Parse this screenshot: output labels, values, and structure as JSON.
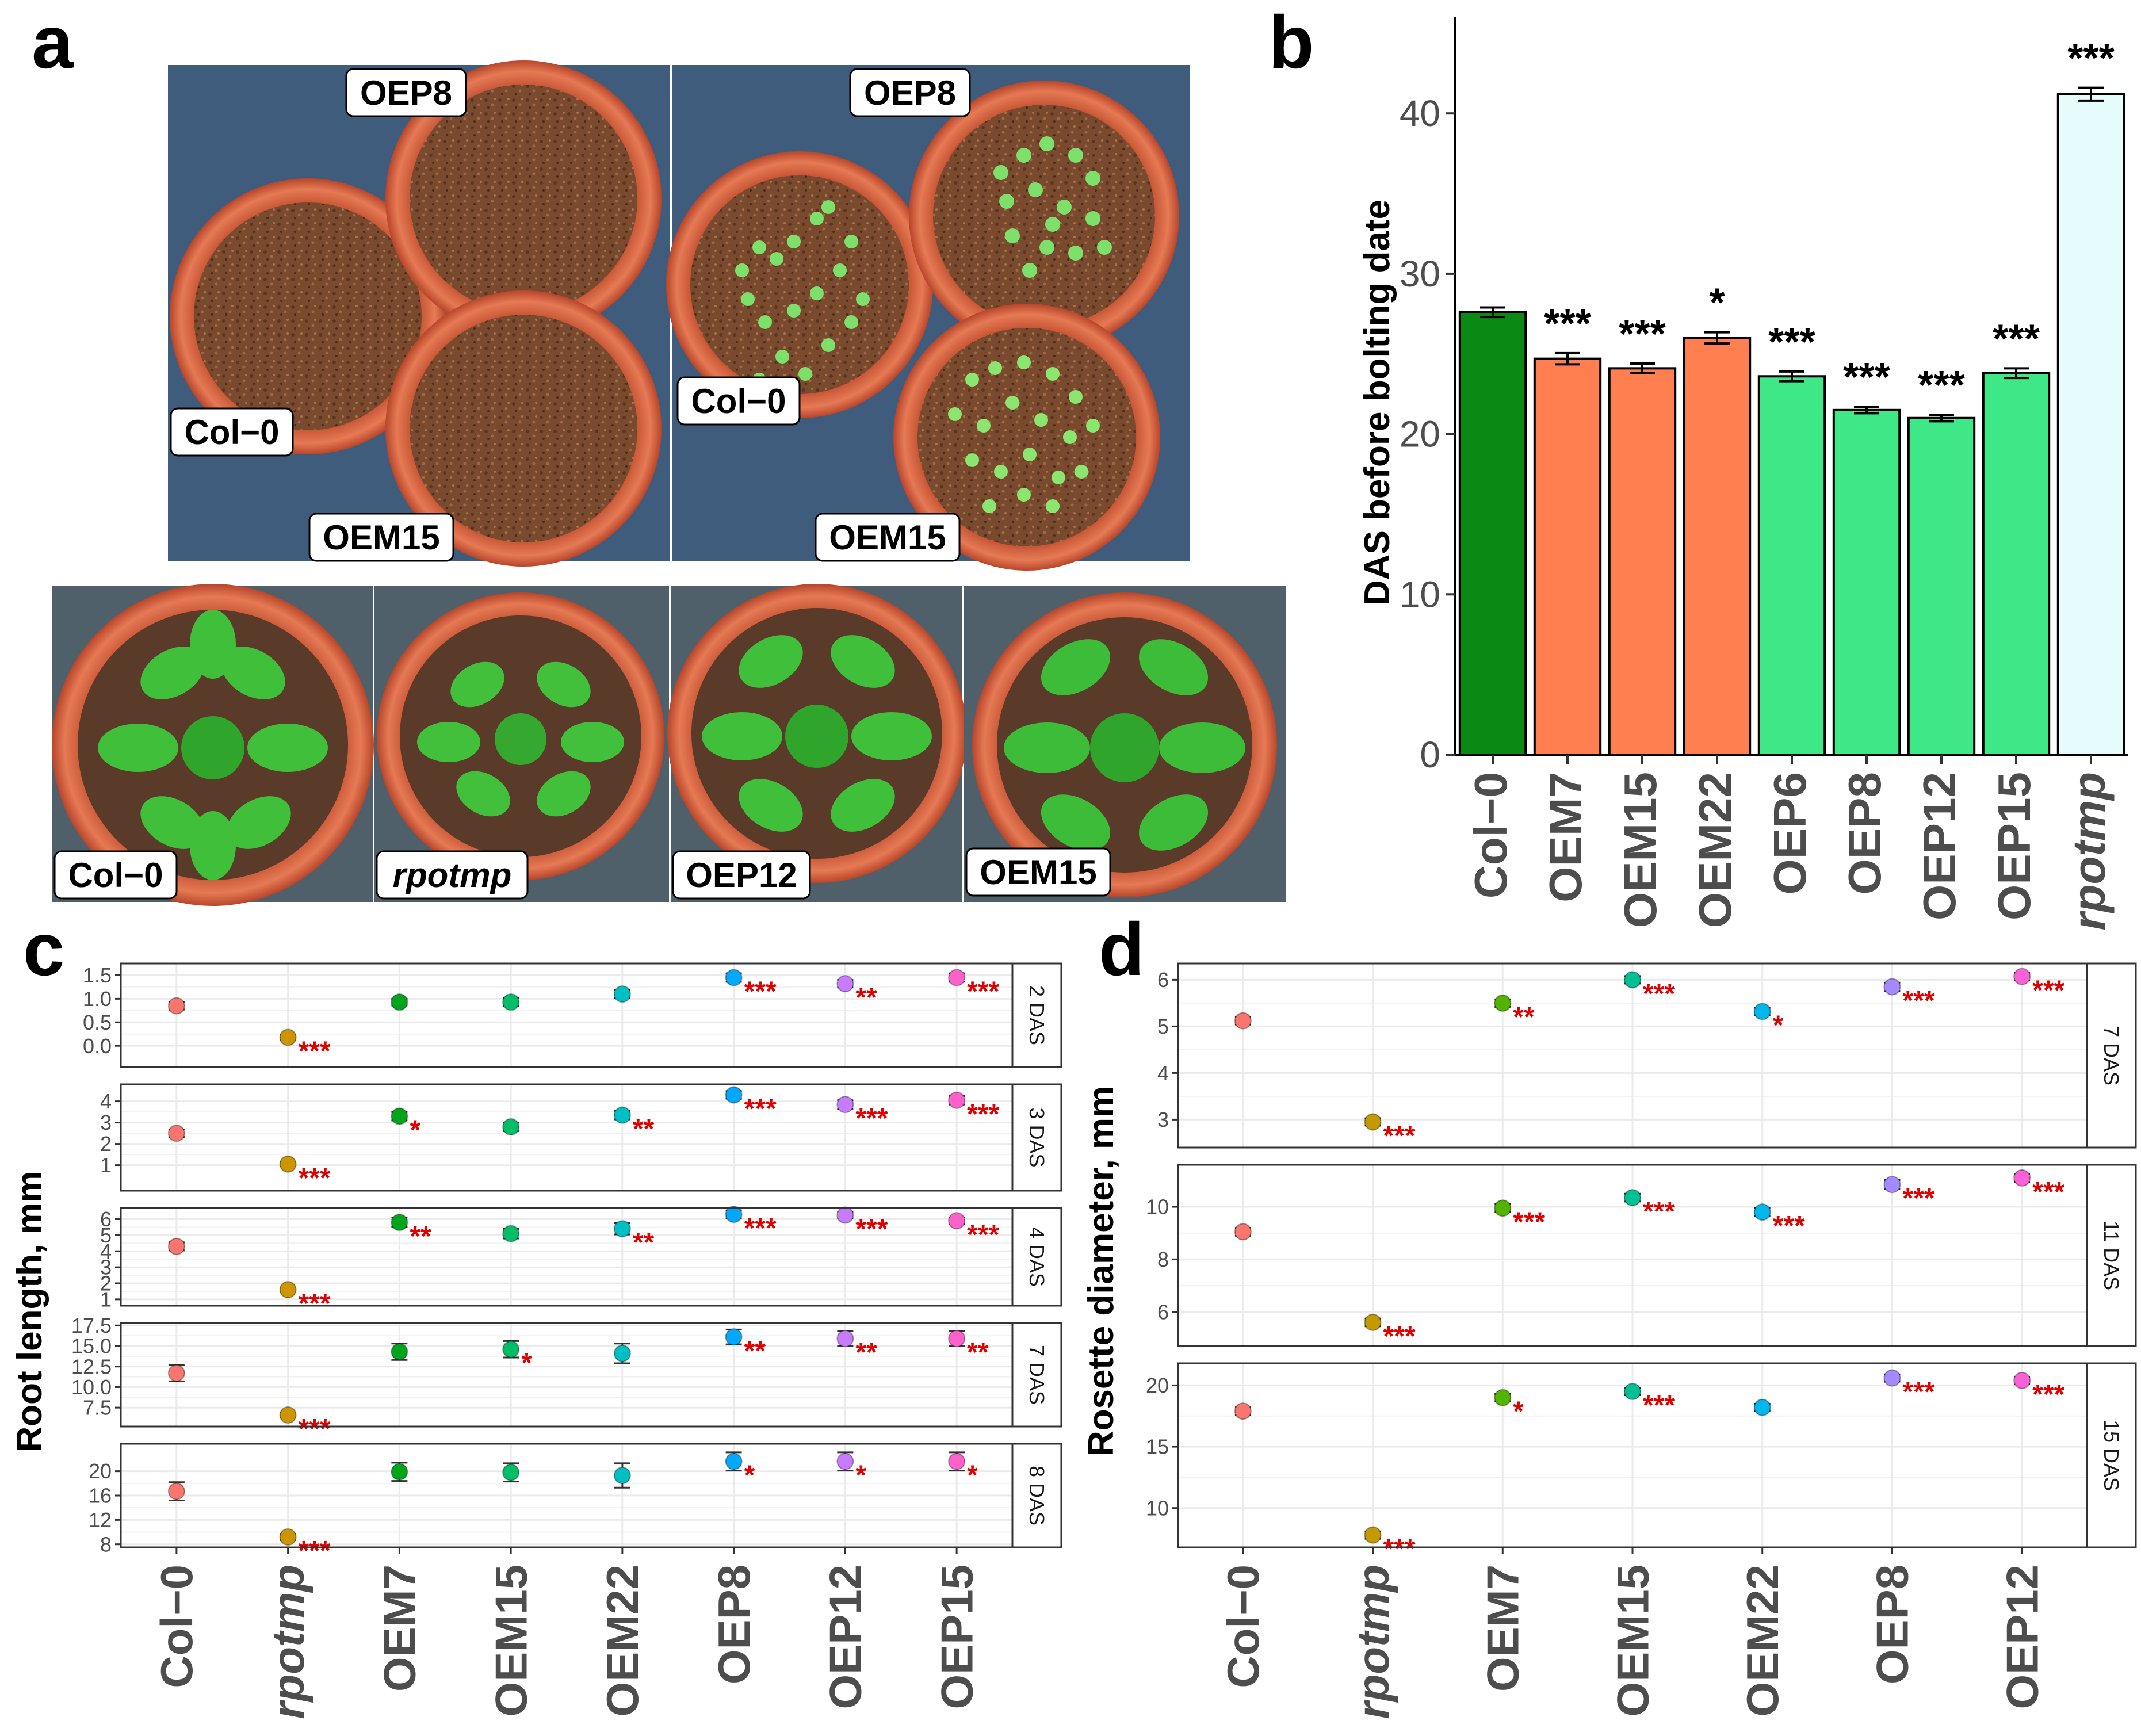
{
  "panels": {
    "a": {
      "label": "a",
      "top_photos": [
        {
          "name": "pots-day-early",
          "labels": [
            "OEP8",
            "Col−0",
            "OEM15"
          ]
        },
        {
          "name": "pots-day-late",
          "labels": [
            "OEP8",
            "Col−0",
            "OEM15"
          ]
        }
      ],
      "bottom_photos": [
        {
          "name": "rosette-col0",
          "label": "Col−0",
          "italic": false
        },
        {
          "name": "rosette-rpotmp",
          "label": "rpotmp",
          "italic": true
        },
        {
          "name": "rosette-oep12",
          "label": "OEP12",
          "italic": false
        },
        {
          "name": "rosette-oem15",
          "label": "OEM15",
          "italic": false
        }
      ]
    },
    "b": {
      "label": "b"
    },
    "c": {
      "label": "c"
    },
    "d": {
      "label": "d"
    }
  },
  "colors": {
    "col0_dark_green": "#0a8a14",
    "oem_orange": "#ff7f50",
    "oep_green": "#3ee887",
    "rpotmp_cyan": "#e6fcfc",
    "sig_red": "#e00000",
    "grid": "#ebebeb",
    "pot": "#d8603e",
    "soil": "#7a4a2e",
    "backdrop": "#3f5c7c"
  },
  "chart_data": [
    {
      "id": "b",
      "type": "bar",
      "title": "",
      "ylabel": "DAS before bolting date",
      "xlabel": "",
      "ylim": [
        0,
        46
      ],
      "yticks": [
        0,
        10,
        20,
        30,
        40
      ],
      "categories": [
        "Col−0",
        "OEM7",
        "OEM15",
        "OEM22",
        "OEP6",
        "OEP8",
        "OEP12",
        "OEP15",
        "rpotmp"
      ],
      "italic_categories": [
        "rpotmp"
      ],
      "values": [
        27.6,
        24.7,
        24.1,
        26.0,
        23.6,
        21.5,
        21.0,
        23.8,
        41.2
      ],
      "errors": [
        0.3,
        0.35,
        0.3,
        0.35,
        0.3,
        0.2,
        0.2,
        0.3,
        0.4
      ],
      "bar_colors": [
        "#0a8a14",
        "#ff7f50",
        "#ff7f50",
        "#ff7f50",
        "#3ee887",
        "#3ee887",
        "#3ee887",
        "#3ee887",
        "#e6fcfc"
      ],
      "significance": [
        "",
        "***",
        "***",
        "*",
        "***",
        "***",
        "***",
        "***",
        "***"
      ]
    },
    {
      "id": "c",
      "type": "scatter",
      "ylabel": "Root length, mm",
      "categories": [
        "Col−0",
        "rpotmp",
        "OEM7",
        "OEM15",
        "OEM22",
        "OEP8",
        "OEP12",
        "OEP15"
      ],
      "italic_categories": [
        "rpotmp"
      ],
      "point_colors": [
        "#f8766d",
        "#cd9600",
        "#00a51c",
        "#00be67",
        "#00bfc4",
        "#00a9ff",
        "#c77cff",
        "#ff61cc"
      ],
      "facets": [
        {
          "strip": "2 DAS",
          "ylim": [
            -0.45,
            1.75
          ],
          "yticks": [
            0.0,
            0.5,
            1.0,
            1.5
          ],
          "yticklabels": [
            "0.0",
            "0.5",
            "1.0",
            "1.5"
          ],
          "means": [
            0.85,
            0.18,
            0.93,
            0.93,
            1.1,
            1.45,
            1.32,
            1.45
          ],
          "errors": [
            0.08,
            0.05,
            0.07,
            0.08,
            0.09,
            0.09,
            0.08,
            0.09
          ],
          "significance": [
            "",
            "***",
            "",
            "",
            "",
            "***",
            "**",
            "***"
          ]
        },
        {
          "strip": "3 DAS",
          "ylim": [
            -0.2,
            4.8
          ],
          "yticks": [
            1,
            2,
            3,
            4
          ],
          "yticklabels": [
            "1",
            "2",
            "3",
            "4"
          ],
          "means": [
            2.5,
            1.05,
            3.3,
            2.8,
            3.35,
            4.3,
            3.85,
            4.05
          ],
          "errors": [
            0.18,
            0.1,
            0.2,
            0.2,
            0.2,
            0.18,
            0.2,
            0.2
          ],
          "significance": [
            "",
            "***",
            "*",
            "",
            "**",
            "***",
            "***",
            "***"
          ]
        },
        {
          "strip": "4 DAS",
          "ylim": [
            0.6,
            6.7
          ],
          "yticks": [
            1,
            2,
            3,
            4,
            5,
            6
          ],
          "yticklabels": [
            "1",
            "2",
            "3",
            "4",
            "5",
            "6"
          ],
          "means": [
            4.3,
            1.6,
            5.8,
            5.1,
            5.4,
            6.3,
            6.25,
            5.9
          ],
          "errors": [
            0.25,
            0.1,
            0.3,
            0.3,
            0.35,
            0.25,
            0.2,
            0.2
          ],
          "significance": [
            "",
            "***",
            "**",
            "",
            "**",
            "***",
            "***",
            "***"
          ]
        },
        {
          "strip": "7 DAS",
          "ylim": [
            5.2,
            17.8
          ],
          "yticks": [
            7.5,
            10.0,
            12.5,
            15.0,
            17.5
          ],
          "yticklabels": [
            "7.5",
            "10.0",
            "12.5",
            "15.0",
            "17.5"
          ],
          "means": [
            11.7,
            6.6,
            14.3,
            14.6,
            14.1,
            16.1,
            15.9,
            15.9
          ],
          "errors": [
            1.0,
            0.3,
            1.0,
            1.0,
            1.2,
            0.9,
            0.9,
            0.9
          ],
          "significance": [
            "",
            "***",
            "",
            "*",
            "",
            "**",
            "**",
            "**"
          ]
        },
        {
          "strip": "8 DAS",
          "ylim": [
            7.5,
            24.5
          ],
          "yticks": [
            8,
            12,
            16,
            20
          ],
          "yticklabels": [
            "8",
            "12",
            "16",
            "20"
          ],
          "means": [
            16.7,
            9.2,
            19.9,
            19.8,
            19.3,
            21.6,
            21.6,
            21.6
          ],
          "errors": [
            1.5,
            0.5,
            1.5,
            1.5,
            2.0,
            1.5,
            1.5,
            1.5
          ],
          "significance": [
            "",
            "***",
            "",
            "",
            "",
            "*",
            "*",
            "*"
          ]
        }
      ]
    },
    {
      "id": "d",
      "type": "scatter",
      "ylabel": "Rosette diameter, mm",
      "categories": [
        "Col−0",
        "rpotmp",
        "OEM7",
        "OEM15",
        "OEM22",
        "OEP8",
        "OEP12"
      ],
      "italic_categories": [
        "rpotmp"
      ],
      "point_colors": [
        "#f8766d",
        "#c49a00",
        "#53b400",
        "#00c094",
        "#00b6eb",
        "#a58aff",
        "#fb61d7"
      ],
      "facets": [
        {
          "strip": "7 DAS",
          "ylim": [
            2.4,
            6.35
          ],
          "yticks": [
            3,
            4,
            5,
            6
          ],
          "yticklabels": [
            "3",
            "4",
            "5",
            "6"
          ],
          "means": [
            5.12,
            2.95,
            5.5,
            6.0,
            5.32,
            5.85,
            6.07
          ],
          "errors": [
            0.08,
            0.08,
            0.08,
            0.08,
            0.08,
            0.09,
            0.08
          ],
          "significance": [
            "",
            "***",
            "**",
            "***",
            "*",
            "***",
            "***"
          ]
        },
        {
          "strip": "11 DAS",
          "ylim": [
            4.7,
            11.6
          ],
          "yticks": [
            6,
            8,
            10
          ],
          "yticklabels": [
            "6",
            "8",
            "10"
          ],
          "means": [
            9.05,
            5.6,
            9.95,
            10.35,
            9.8,
            10.85,
            11.1
          ],
          "errors": [
            0.15,
            0.15,
            0.15,
            0.15,
            0.15,
            0.17,
            0.16
          ],
          "significance": [
            "",
            "***",
            "***",
            "***",
            "***",
            "***",
            "***"
          ]
        },
        {
          "strip": "15 DAS",
          "ylim": [
            6.8,
            21.8
          ],
          "yticks": [
            10,
            15,
            20
          ],
          "yticklabels": [
            "10",
            "15",
            "20"
          ],
          "means": [
            17.9,
            7.8,
            19.0,
            19.5,
            18.2,
            20.6,
            20.4
          ],
          "errors": [
            0.3,
            0.3,
            0.3,
            0.3,
            0.3,
            0.3,
            0.3
          ],
          "significance": [
            "",
            "***",
            "*",
            "***",
            "",
            "***",
            "***"
          ]
        }
      ]
    }
  ]
}
